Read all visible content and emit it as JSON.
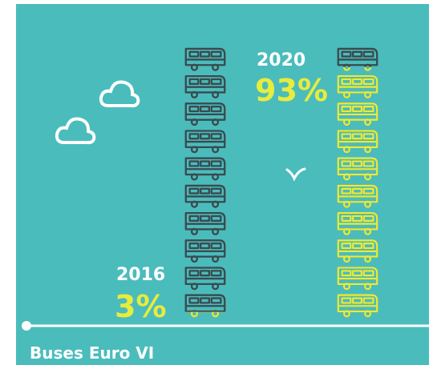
{
  "chart_data": {
    "type": "pictograph",
    "title": "Buses Euro VI",
    "categories": [
      "2016",
      "2020"
    ],
    "values": [
      3,
      93
    ],
    "value_labels": [
      "3%",
      "93%"
    ],
    "ylim": [
      0,
      100
    ],
    "color": "#e8ec3c",
    "base_color": "#3a4a4e"
  }
}
